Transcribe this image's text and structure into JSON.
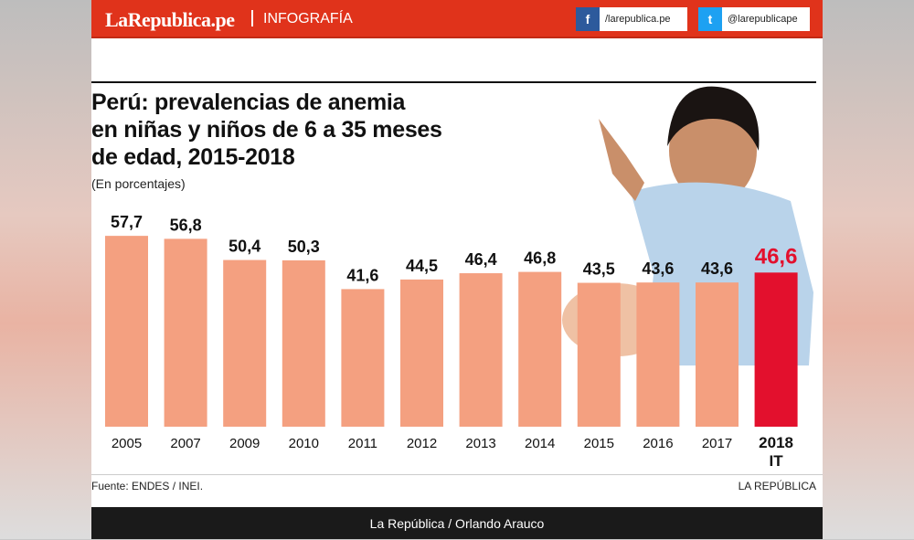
{
  "header": {
    "logo": "LaRepublica.pe",
    "section": "INFOGRAFÍA",
    "facebook": "/larepublica.pe",
    "twitter": "@larepublicape",
    "facebook_icon": "facebook-icon",
    "twitter_icon": "twitter-icon",
    "brand_color": "#e0331b"
  },
  "chart_data": {
    "type": "bar",
    "title_lines": [
      "Perú: prevalencias de anemia",
      "en niñas y niños de 6 a 35 meses",
      "de edad, 2015-2018"
    ],
    "subtitle": "(En porcentajes)",
    "categories": [
      "2005",
      "2007",
      "2009",
      "2010",
      "2011",
      "2012",
      "2013",
      "2014",
      "2015",
      "2016",
      "2017",
      "2018 IT"
    ],
    "values": [
      57.7,
      56.8,
      50.4,
      50.3,
      41.6,
      44.5,
      46.4,
      46.8,
      43.5,
      43.6,
      43.6,
      46.6
    ],
    "labels": [
      "57,7",
      "56,8",
      "50,4",
      "50,3",
      "41,6",
      "44,5",
      "46,4",
      "46,8",
      "43,5",
      "43,6",
      "43,6",
      "46,6"
    ],
    "colors": {
      "default": "#f4a080",
      "highlight": "#e3102d"
    },
    "highlight_index": 11,
    "ylim": [
      0,
      60
    ]
  },
  "footer": {
    "source": "Fuente: ENDES / INEI.",
    "brand": "LA REPÚBLICA",
    "credit": "La República / Orlando Arauco"
  }
}
